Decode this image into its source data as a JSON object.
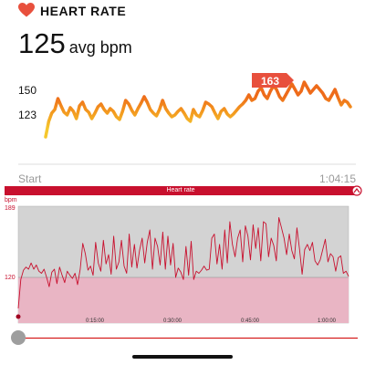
{
  "header": {
    "title": "HEART RATE",
    "icon": "heart-icon"
  },
  "summary": {
    "avg_value": "125",
    "avg_unit": "avg bpm"
  },
  "chart1": {
    "y_labels": [
      "150",
      "123"
    ],
    "x_labels": [
      "Start",
      "1:04:15"
    ],
    "peak_label": "163"
  },
  "chart2": {
    "title": "Heart rate",
    "y_unit": "bpm",
    "y_labels": [
      "189",
      "120"
    ],
    "x_labels": [
      "0:15:00",
      "0:30:00",
      "0:45:00",
      "1:00:00"
    ]
  },
  "colors": {
    "accent": "#c8102e",
    "line_orange": "#f08a1c",
    "line_yellow": "#f5c72c",
    "band": "#e9b5c4",
    "grid_bg": "#d3d3d3"
  },
  "chart_data": [
    {
      "type": "line",
      "series": [
        {
          "values": [
            98,
            115,
            124,
            128,
            140,
            132,
            125,
            122,
            130,
            126,
            118,
            132,
            136,
            128,
            125,
            118,
            124,
            131,
            134,
            128,
            124,
            129,
            126,
            120,
            117,
            126,
            138,
            134,
            127,
            122,
            129,
            135,
            142,
            136,
            128,
            124,
            121,
            128,
            138,
            129,
            124,
            120,
            122,
            126,
            129,
            124,
            118,
            115,
            128,
            122,
            120,
            127,
            136,
            134,
            131,
            124,
            118,
            126,
            129,
            123,
            120,
            123,
            127,
            131,
            134,
            138,
            144,
            138,
            140,
            148,
            152,
            144,
            140,
            148,
            154,
            150,
            142,
            138,
            144,
            150,
            156,
            150,
            144,
            148,
            158,
            152,
            146,
            150,
            154,
            150,
            146,
            140,
            138,
            144,
            150,
            141,
            133,
            138,
            136,
            131
          ]
        }
      ],
      "y_ticks": [
        150,
        123
      ],
      "x_labels": [
        "Start",
        "1:04:15"
      ],
      "annotations": [
        "163"
      ]
    },
    {
      "type": "line",
      "title": "Heart rate",
      "ylabel": "bpm",
      "ylim": [
        80,
        189
      ],
      "y_ticks": [
        189,
        120
      ],
      "x_labels": [
        "0:15:00",
        "0:30:00",
        "0:45:00",
        "1:00:00"
      ],
      "series": [
        {
          "values": [
            90,
            118,
            127,
            130,
            128,
            134,
            128,
            132,
            126,
            124,
            128,
            120,
            111,
            125,
            128,
            114,
            130,
            122,
            115,
            126,
            122,
            119,
            124,
            113,
            128,
            153,
            143,
            127,
            131,
            122,
            154,
            134,
            126,
            156,
            133,
            142,
            123,
            160,
            128,
            135,
            156,
            131,
            124,
            162,
            130,
            152,
            129,
            146,
            158,
            134,
            154,
            166,
            128,
            158,
            150,
            132,
            164,
            128,
            160,
            132,
            153,
            120,
            129,
            125,
            118,
            150,
            122,
            155,
            118,
            126,
            124,
            127,
            131,
            127,
            128,
            158,
            162,
            133,
            152,
            128,
            166,
            134,
            174,
            152,
            140,
            158,
            166,
            135,
            170,
            160,
            137,
            171,
            148,
            168,
            136,
            174,
            172,
            140,
            158,
            151,
            136,
            178,
            168,
            158,
            142,
            162,
            146,
            138,
            168,
            147,
            123,
            147,
            152,
            146,
            154,
            136,
            132,
            137,
            147,
            157,
            135,
            143,
            140,
            126,
            139,
            141,
            124,
            126,
            121
          ]
        }
      ]
    }
  ]
}
